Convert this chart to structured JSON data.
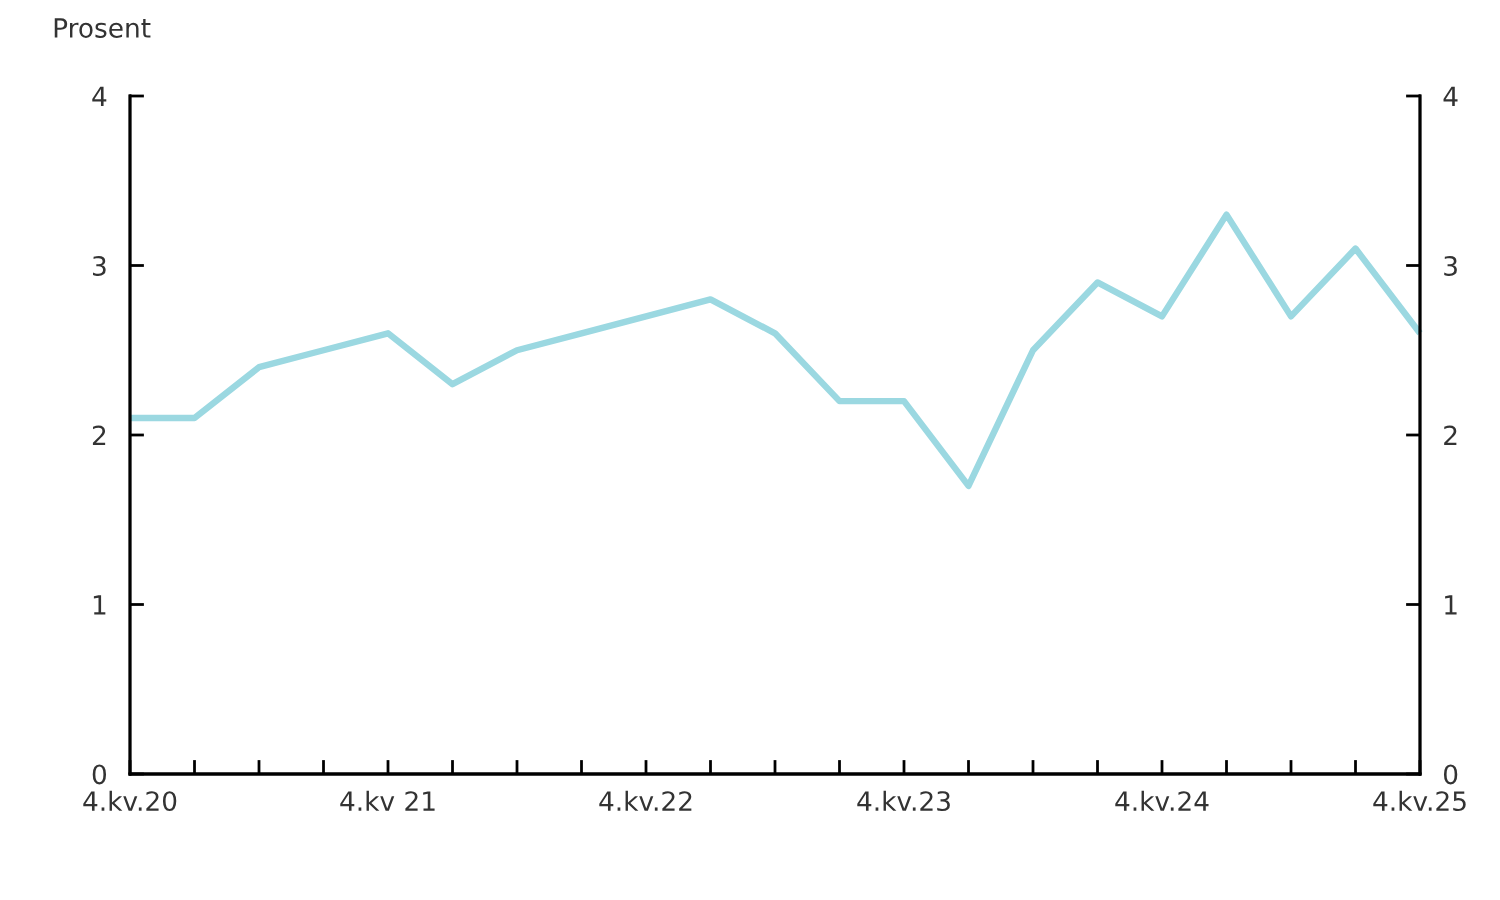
{
  "chart_data": {
    "type": "line",
    "ylabel": "Prosent",
    "categories": [
      "4.kv.20",
      null,
      null,
      null,
      "4.kv 21",
      null,
      null,
      null,
      "4.kv.22",
      null,
      null,
      null,
      "4.kv.23",
      null,
      null,
      null,
      "4.kv.24",
      null,
      null,
      null,
      "4.kv.25"
    ],
    "series": [
      {
        "color": "#9bd8e1",
        "values": [
          2.1,
          2.1,
          2.4,
          2.5,
          2.6,
          2.3,
          2.5,
          2.6,
          2.7,
          2.8,
          2.6,
          2.2,
          2.2,
          1.7,
          2.5,
          2.9,
          2.7,
          3.3,
          2.7,
          3.1,
          2.6
        ]
      }
    ],
    "ylim": [
      0,
      4
    ],
    "yticks": [
      0,
      1,
      2,
      3,
      4
    ],
    "y2lim": [
      0,
      4
    ],
    "y2ticks": [
      0,
      1,
      2,
      3,
      4
    ],
    "marker": "none",
    "line_style": "solid"
  }
}
